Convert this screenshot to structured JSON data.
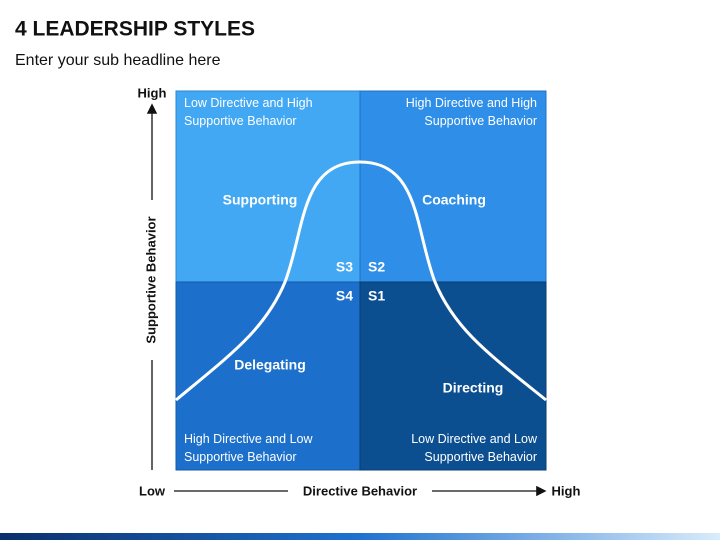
{
  "header": {
    "title": "4 LEADERSHIP STYLES",
    "subtitle": "Enter your sub headline here"
  },
  "axes": {
    "y_label": "Supportive Behavior",
    "y_high": "High",
    "x_label": "Directive Behavior",
    "x_low": "Low",
    "x_high": "High"
  },
  "quadrants": [
    {
      "style": "Supporting",
      "code": "S3",
      "description": [
        "Low Directive and High",
        "Supportive Behavior"
      ]
    },
    {
      "style": "Coaching",
      "code": "S2",
      "description": [
        "High Directive and High",
        "Supportive Behavior"
      ]
    },
    {
      "style": "Delegating",
      "code": "S4",
      "description": [
        "High Directive and Low",
        "Supportive Behavior"
      ]
    },
    {
      "style": "Directing",
      "code": "S1",
      "description": [
        "Low Directive and Low",
        "Supportive Behavior"
      ]
    }
  ]
}
